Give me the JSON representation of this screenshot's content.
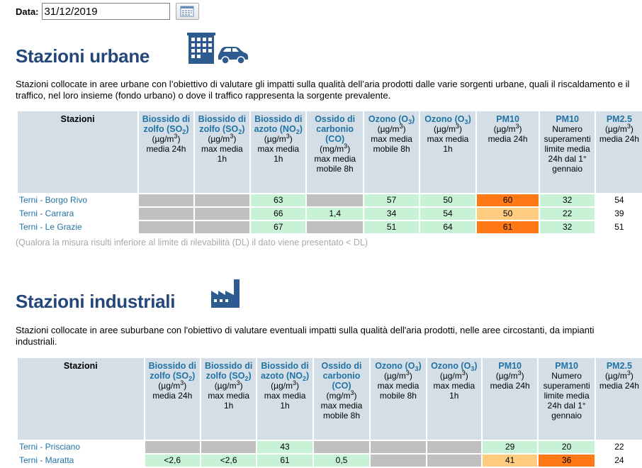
{
  "date": {
    "label": "Data:",
    "value": "31/12/2019"
  },
  "icons": {
    "calendar": "calendar-icon",
    "urban": "city-car-icon",
    "industrial": "factory-icon"
  },
  "colors": {
    "title": "#24477a",
    "link": "#2173a5",
    "header_bg": "#d3dee6",
    "gray": "#c0c0c0",
    "good": "#c7f2d5",
    "moderate": "#ffcc80",
    "bad": "#ff7a16"
  },
  "urban": {
    "title": "Stazioni urbane",
    "description": "Stazioni collocate in aree urbane con l’obiettivo di valutare gli impatti sulla qualità dell’aria prodotti dalle varie sorgenti urbane, quali il riscaldamento e il traffico, nel loro insieme (fondo urbano) o dove il traffico rappresenta la sorgente prevalente.",
    "rows": [
      {
        "name": "Terni - Borgo Rivo",
        "so2_24h": "",
        "so2_1h": "",
        "no2": "63",
        "co": "",
        "o3_8h": "57",
        "o3_1h": "50",
        "pm10": "60",
        "pm10_exc": "32",
        "pm25": "54"
      },
      {
        "name": "Terni - Carrara",
        "so2_24h": "",
        "so2_1h": "",
        "no2": "66",
        "co": "1,4",
        "o3_8h": "34",
        "o3_1h": "54",
        "pm10": "50",
        "pm10_exc": "22",
        "pm25": "39"
      },
      {
        "name": "Terni - Le Grazie",
        "so2_24h": "",
        "so2_1h": "",
        "no2": "67",
        "co": "",
        "o3_8h": "51",
        "o3_1h": "64",
        "pm10": "61",
        "pm10_exc": "32",
        "pm25": "51"
      }
    ]
  },
  "note": "(Qualora la misura risulti inferiore al limite di rilevabilità (DL) il dato viene presentato < DL)",
  "industrial": {
    "title": "Stazioni industriali",
    "description": "Stazioni collocate in aree suburbane con l'obiettivo di valutare eventuali impatti sulla qualità dell'aria prodotti, nelle aree circostanti, da impianti industriali.",
    "rows": [
      {
        "name": "Terni - Prisciano",
        "so2_24h": "",
        "so2_1h": "",
        "no2": "43",
        "co": "",
        "o3_8h": "",
        "o3_1h": "",
        "pm10": "29",
        "pm10_exc": "20",
        "pm25": "22"
      },
      {
        "name": "Terni - Maratta",
        "so2_24h": "<2,6",
        "so2_1h": "<2,6",
        "no2": "61",
        "co": "0,5",
        "o3_8h": "",
        "o3_1h": "",
        "pm10": "41",
        "pm10_exc": "36",
        "pm25": "24"
      }
    ]
  },
  "headers": {
    "stazioni": "Stazioni",
    "so2_title": "Biossido di zolfo (SO",
    "so2_unit": "(µg/m",
    "so2_24h_stat": "media 24h",
    "so2_1h_stat": "max media 1h",
    "no2_title": "Biossido di azoto (NO",
    "no2_unit": "(µg/m",
    "no2_stat": "max media 1h",
    "co_title": "Ossido di carbonio (CO)",
    "co_unit": "(mg/m",
    "co_stat": "max media mobile 8h",
    "o3_title": "Ozono (O",
    "o3_unit": "(µg/m",
    "o3_8h_stat": "max media mobile 8h",
    "o3_1h_stat": "max media 1h",
    "pm10_title": "PM10",
    "pm10_unit": "(µg/m",
    "pm10_stat": "media 24h",
    "pm10_exc_title": "PM10",
    "pm10_exc_stat": "Numero superamenti limite media 24h dal 1° gennaio",
    "pm25_title": "PM2.5",
    "pm25_unit": "(µg/m",
    "pm25_stat": "media 24h"
  }
}
